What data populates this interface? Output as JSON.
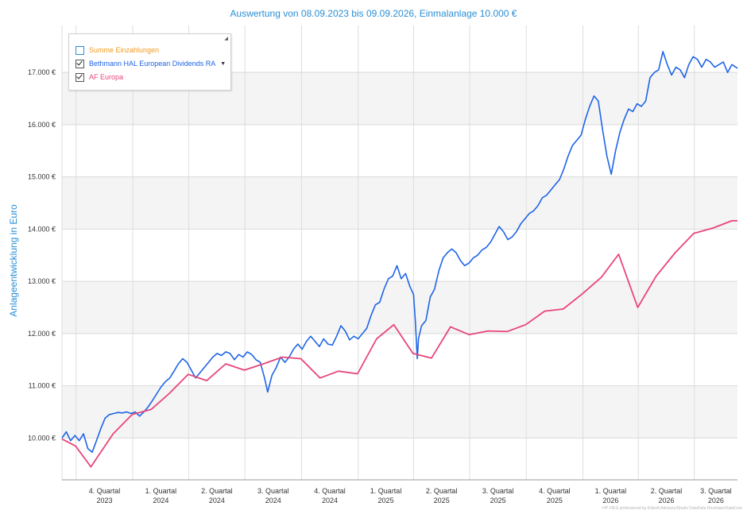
{
  "title": "Auswertung von 08.09.2023 bis 09.09.2026, Einmalanlage 10.000 €",
  "watermark": "HP VIEG professional by Edisoft Advisory/Studio DataData DeveloperDataCore",
  "legend": {
    "items": [
      {
        "label": "Summe Einzahlungen",
        "checked": false,
        "color": "#f29b1d"
      },
      {
        "label": "Bethmann HAL European Dividends RA",
        "checked": true,
        "color": "#1e64e6"
      },
      {
        "label": "AF Europa",
        "checked": true,
        "color": "#e8457a"
      }
    ],
    "placement": "top-left"
  },
  "chart_data": {
    "type": "line",
    "title": "Auswertung von 08.09.2023 bis 09.09.2026, Einmalanlage 10.000 €",
    "xlabel": "",
    "ylabel": "Anlageentwicklung in Euro",
    "x_range": [
      "2023-09-08",
      "2026-09-09"
    ],
    "ylim": [
      9200,
      17900
    ],
    "y_ticks": [
      "10.000 €",
      "11.000 €",
      "12.000 €",
      "13.000 €",
      "14.000 €",
      "15.000 €",
      "16.000 €",
      "17.000 €"
    ],
    "y_tick_values": [
      10000,
      11000,
      12000,
      13000,
      14000,
      15000,
      16000,
      17000
    ],
    "x_ticks": [
      {
        "line1": "4. Quartal",
        "line2": "2023"
      },
      {
        "line1": "1. Quartal",
        "line2": "2024"
      },
      {
        "line1": "2. Quartal",
        "line2": "2024"
      },
      {
        "line1": "3. Quartal",
        "line2": "2024"
      },
      {
        "line1": "4. Quartal",
        "line2": "2024"
      },
      {
        "line1": "1. Quartal",
        "line2": "2025"
      },
      {
        "line1": "2. Quartal",
        "line2": "2025"
      },
      {
        "line1": "3. Quartal",
        "line2": "2025"
      },
      {
        "line1": "4. Quartal",
        "line2": "2025"
      },
      {
        "line1": "1. Quartal",
        "line2": "2026"
      },
      {
        "line1": "2. Quartal",
        "line2": "2026"
      },
      {
        "line1": "3. Quartal",
        "line2": "2026"
      }
    ],
    "quarter_starts": [
      "2023-10-01",
      "2024-01-01",
      "2024-04-01",
      "2024-07-01",
      "2024-10-01",
      "2025-01-01",
      "2025-04-01",
      "2025-07-01",
      "2025-10-01",
      "2026-01-01",
      "2026-04-01",
      "2026-07-01"
    ],
    "grid": true,
    "series": [
      {
        "name": "Bethmann HAL European Dividends RA",
        "color": "#1e64e6",
        "points": [
          [
            "2023-09-08",
            10000
          ],
          [
            "2023-09-15",
            10120
          ],
          [
            "2023-09-22",
            9950
          ],
          [
            "2023-09-29",
            10050
          ],
          [
            "2023-10-06",
            9950
          ],
          [
            "2023-10-13",
            10080
          ],
          [
            "2023-10-20",
            9800
          ],
          [
            "2023-10-27",
            9730
          ],
          [
            "2023-11-03",
            9950
          ],
          [
            "2023-11-10",
            10180
          ],
          [
            "2023-11-17",
            10380
          ],
          [
            "2023-11-24",
            10450
          ],
          [
            "2023-12-01",
            10470
          ],
          [
            "2023-12-08",
            10490
          ],
          [
            "2023-12-15",
            10480
          ],
          [
            "2023-12-22",
            10500
          ],
          [
            "2023-12-29",
            10470
          ],
          [
            "2024-01-05",
            10500
          ],
          [
            "2024-01-12",
            10420
          ],
          [
            "2024-01-19",
            10500
          ],
          [
            "2024-01-26",
            10600
          ],
          [
            "2024-02-02",
            10720
          ],
          [
            "2024-02-09",
            10850
          ],
          [
            "2024-02-16",
            10980
          ],
          [
            "2024-02-23",
            11080
          ],
          [
            "2024-03-01",
            11150
          ],
          [
            "2024-03-08",
            11280
          ],
          [
            "2024-03-15",
            11420
          ],
          [
            "2024-03-22",
            11520
          ],
          [
            "2024-03-29",
            11450
          ],
          [
            "2024-04-05",
            11300
          ],
          [
            "2024-04-12",
            11150
          ],
          [
            "2024-04-19",
            11250
          ],
          [
            "2024-04-26",
            11350
          ],
          [
            "2024-05-03",
            11450
          ],
          [
            "2024-05-10",
            11550
          ],
          [
            "2024-05-17",
            11620
          ],
          [
            "2024-05-24",
            11580
          ],
          [
            "2024-05-31",
            11650
          ],
          [
            "2024-06-07",
            11620
          ],
          [
            "2024-06-14",
            11500
          ],
          [
            "2024-06-21",
            11600
          ],
          [
            "2024-06-28",
            11550
          ],
          [
            "2024-07-05",
            11650
          ],
          [
            "2024-07-12",
            11600
          ],
          [
            "2024-07-19",
            11500
          ],
          [
            "2024-07-26",
            11450
          ],
          [
            "2024-08-02",
            11150
          ],
          [
            "2024-08-07",
            10880
          ],
          [
            "2024-08-14",
            11200
          ],
          [
            "2024-08-21",
            11350
          ],
          [
            "2024-08-28",
            11550
          ],
          [
            "2024-09-04",
            11450
          ],
          [
            "2024-09-11",
            11550
          ],
          [
            "2024-09-18",
            11700
          ],
          [
            "2024-09-25",
            11800
          ],
          [
            "2024-10-02",
            11700
          ],
          [
            "2024-10-09",
            11850
          ],
          [
            "2024-10-16",
            11950
          ],
          [
            "2024-10-23",
            11850
          ],
          [
            "2024-10-30",
            11750
          ],
          [
            "2024-11-06",
            11900
          ],
          [
            "2024-11-13",
            11800
          ],
          [
            "2024-11-20",
            11780
          ],
          [
            "2024-11-27",
            11950
          ],
          [
            "2024-12-04",
            12150
          ],
          [
            "2024-12-11",
            12050
          ],
          [
            "2024-12-18",
            11880
          ],
          [
            "2024-12-25",
            11950
          ],
          [
            "2025-01-01",
            11900
          ],
          [
            "2025-01-08",
            12000
          ],
          [
            "2025-01-15",
            12100
          ],
          [
            "2025-01-22",
            12350
          ],
          [
            "2025-01-29",
            12550
          ],
          [
            "2025-02-05",
            12600
          ],
          [
            "2025-02-12",
            12850
          ],
          [
            "2025-02-19",
            13050
          ],
          [
            "2025-02-26",
            13100
          ],
          [
            "2025-03-05",
            13300
          ],
          [
            "2025-03-12",
            13050
          ],
          [
            "2025-03-19",
            13150
          ],
          [
            "2025-03-26",
            12900
          ],
          [
            "2025-04-01",
            12750
          ],
          [
            "2025-04-04",
            12200
          ],
          [
            "2025-04-07",
            11520
          ],
          [
            "2025-04-09",
            11900
          ],
          [
            "2025-04-14",
            12150
          ],
          [
            "2025-04-21",
            12250
          ],
          [
            "2025-04-28",
            12700
          ],
          [
            "2025-05-05",
            12850
          ],
          [
            "2025-05-12",
            13200
          ],
          [
            "2025-05-19",
            13450
          ],
          [
            "2025-05-26",
            13550
          ],
          [
            "2025-06-02",
            13620
          ],
          [
            "2025-06-09",
            13550
          ],
          [
            "2025-06-16",
            13400
          ],
          [
            "2025-06-23",
            13300
          ],
          [
            "2025-06-30",
            13350
          ],
          [
            "2025-07-07",
            13450
          ],
          [
            "2025-07-14",
            13500
          ],
          [
            "2025-07-21",
            13600
          ],
          [
            "2025-07-28",
            13650
          ],
          [
            "2025-08-04",
            13750
          ],
          [
            "2025-08-11",
            13900
          ],
          [
            "2025-08-18",
            14050
          ],
          [
            "2025-08-25",
            13950
          ],
          [
            "2025-09-01",
            13800
          ],
          [
            "2025-09-08",
            13850
          ],
          [
            "2025-09-15",
            13950
          ],
          [
            "2025-09-22",
            14100
          ],
          [
            "2025-09-29",
            14200
          ],
          [
            "2025-10-06",
            14300
          ],
          [
            "2025-10-13",
            14350
          ],
          [
            "2025-10-20",
            14450
          ],
          [
            "2025-10-27",
            14600
          ],
          [
            "2025-11-03",
            14650
          ],
          [
            "2025-11-10",
            14750
          ],
          [
            "2025-11-17",
            14850
          ],
          [
            "2025-11-24",
            14950
          ],
          [
            "2025-12-01",
            15150
          ],
          [
            "2025-12-08",
            15400
          ],
          [
            "2025-12-15",
            15600
          ],
          [
            "2025-12-22",
            15700
          ],
          [
            "2025-12-29",
            15800
          ],
          [
            "2026-01-05",
            16100
          ],
          [
            "2026-01-12",
            16350
          ],
          [
            "2026-01-19",
            16550
          ],
          [
            "2026-01-26",
            16450
          ],
          [
            "2026-02-02",
            15900
          ],
          [
            "2026-02-09",
            15400
          ],
          [
            "2026-02-16",
            15050
          ],
          [
            "2026-02-23",
            15500
          ],
          [
            "2026-03-02",
            15850
          ],
          [
            "2026-03-09",
            16100
          ],
          [
            "2026-03-16",
            16300
          ],
          [
            "2026-03-23",
            16250
          ],
          [
            "2026-03-30",
            16400
          ],
          [
            "2026-04-06",
            16350
          ],
          [
            "2026-04-13",
            16450
          ],
          [
            "2026-04-20",
            16900
          ],
          [
            "2026-04-27",
            17000
          ],
          [
            "2026-05-04",
            17050
          ],
          [
            "2026-05-11",
            17400
          ],
          [
            "2026-05-18",
            17150
          ],
          [
            "2026-05-25",
            16950
          ],
          [
            "2026-06-01",
            17100
          ],
          [
            "2026-06-08",
            17050
          ],
          [
            "2026-06-15",
            16900
          ],
          [
            "2026-06-22",
            17150
          ],
          [
            "2026-06-29",
            17300
          ],
          [
            "2026-07-06",
            17250
          ],
          [
            "2026-07-13",
            17100
          ],
          [
            "2026-07-20",
            17250
          ],
          [
            "2026-07-27",
            17200
          ],
          [
            "2026-08-03",
            17100
          ],
          [
            "2026-08-10",
            17150
          ],
          [
            "2026-08-17",
            17200
          ],
          [
            "2026-08-24",
            17000
          ],
          [
            "2026-08-31",
            17150
          ],
          [
            "2026-09-09",
            17080
          ]
        ]
      },
      {
        "name": "AF Europa",
        "color": "#e8457a",
        "points": [
          [
            "2023-09-08",
            9980
          ],
          [
            "2023-09-30",
            9850
          ],
          [
            "2023-10-25",
            9450
          ],
          [
            "2023-11-30",
            10080
          ],
          [
            "2023-12-31",
            10450
          ],
          [
            "2024-01-31",
            10550
          ],
          [
            "2024-02-29",
            10850
          ],
          [
            "2024-03-31",
            11220
          ],
          [
            "2024-04-30",
            11100
          ],
          [
            "2024-05-31",
            11420
          ],
          [
            "2024-06-30",
            11300
          ],
          [
            "2024-07-31",
            11420
          ],
          [
            "2024-08-31",
            11550
          ],
          [
            "2024-09-30",
            11520
          ],
          [
            "2024-10-31",
            11150
          ],
          [
            "2024-11-30",
            11280
          ],
          [
            "2024-12-31",
            11230
          ],
          [
            "2025-01-31",
            11900
          ],
          [
            "2025-02-28",
            12170
          ],
          [
            "2025-03-31",
            11620
          ],
          [
            "2025-04-30",
            11530
          ],
          [
            "2025-05-31",
            12130
          ],
          [
            "2025-06-30",
            11980
          ],
          [
            "2025-07-31",
            12050
          ],
          [
            "2025-08-31",
            12040
          ],
          [
            "2025-09-30",
            12170
          ],
          [
            "2025-10-31",
            12430
          ],
          [
            "2025-11-30",
            12470
          ],
          [
            "2025-12-31",
            12760
          ],
          [
            "2026-01-31",
            13080
          ],
          [
            "2026-02-28",
            13520
          ],
          [
            "2026-03-31",
            12500
          ],
          [
            "2026-04-30",
            13100
          ],
          [
            "2026-05-31",
            13550
          ],
          [
            "2026-06-30",
            13920
          ],
          [
            "2026-07-31",
            14020
          ],
          [
            "2026-08-31",
            14160
          ],
          [
            "2026-09-09",
            14160
          ]
        ]
      }
    ]
  }
}
